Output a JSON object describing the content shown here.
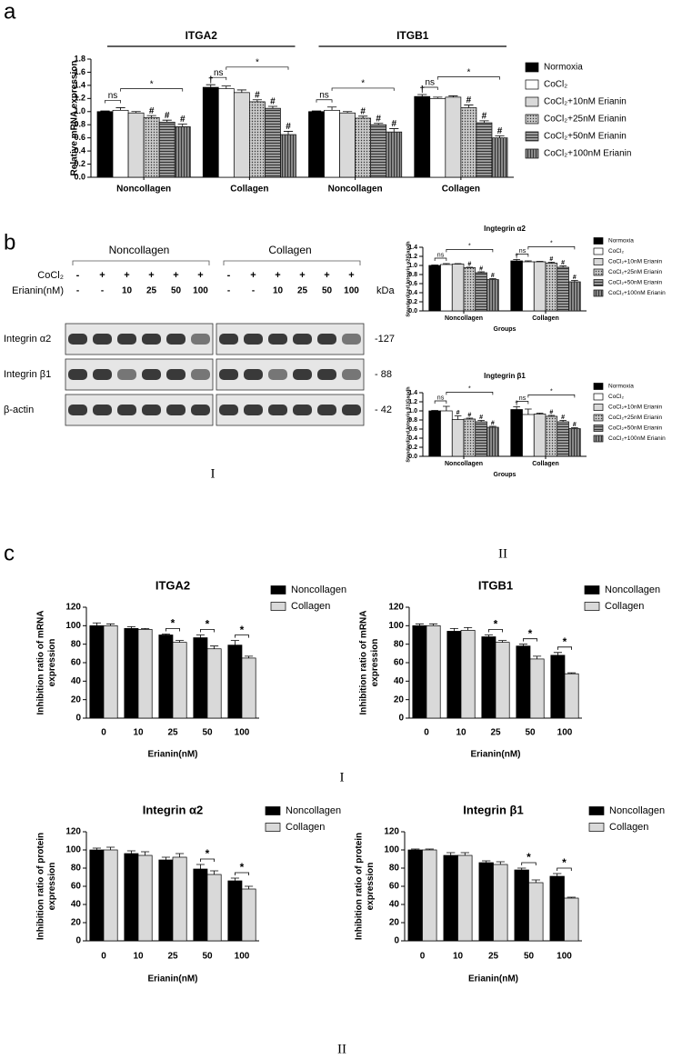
{
  "panel_labels": [
    "a",
    "b",
    "c"
  ],
  "captions": [
    "I",
    "II",
    "I",
    "II"
  ],
  "blot": {
    "groups": [
      "Noncollagen",
      "Collagen"
    ],
    "cocl2_label": "CoCl₂",
    "erianin_label": "Erianin(nM)",
    "cocl2": [
      "-",
      "+",
      "+",
      "+",
      "+",
      "+"
    ],
    "erianin": [
      "-",
      "-",
      "10",
      "25",
      "50",
      "100"
    ],
    "bands": [
      "Integrin α2",
      "Integrin β1",
      "β-actin"
    ],
    "kda_label": "kDa",
    "kda": [
      "-127",
      "- 88",
      "- 42"
    ]
  },
  "chart_data": [
    {
      "type": "bar",
      "headers": [
        "ITGA2",
        "ITGB1"
      ],
      "ylabel": "Relative mRNA expression",
      "categories": [
        "Noncollagen",
        "Collagen",
        "Noncollagen",
        "Collagen"
      ],
      "ylim": [
        0,
        1.8
      ],
      "yticks": [
        {
          "value": 0,
          "label": "0.0"
        },
        0.2,
        0.4,
        0.6,
        0.8,
        {
          "value": 1,
          "label": "1.0"
        },
        1.2,
        1.4,
        1.6,
        1.8
      ],
      "brackets": [
        {
          "text": "ns",
          "from": 0,
          "to": 1
        },
        {
          "text": "*",
          "from": 1,
          "to": 5
        }
      ],
      "series": [
        {
          "name": "Normoxia",
          "color": "#000000",
          "values": [
            1.0,
            1.37,
            1.0,
            1.23
          ],
          "errors": [
            0.01,
            0.04,
            0.01,
            0.03
          ],
          "marks": [
            null,
            "†",
            null,
            "†"
          ]
        },
        {
          "name": "CoCl₂",
          "color": "#ffffff",
          "values": [
            1.02,
            1.35,
            1.02,
            1.2
          ],
          "errors": [
            0.04,
            0.04,
            0.05,
            0.02
          ]
        },
        {
          "name": "CoCl₂+10nM Erianin",
          "color": "#d9d9d9",
          "values": [
            0.98,
            1.29,
            0.98,
            1.22
          ],
          "errors": [
            0.02,
            0.04,
            0.02,
            0.02
          ]
        },
        {
          "name": "CoCl₂+25nM Erianin",
          "color": "#c8c8c8",
          "pattern": "dots",
          "values": [
            0.91,
            1.15,
            0.9,
            1.06
          ],
          "errors": [
            0.03,
            0.03,
            0.03,
            0.04
          ],
          "marks": [
            "#",
            "#",
            "#",
            "#"
          ]
        },
        {
          "name": "CoCl₂+50nM Erianin",
          "color": "#9a9a9a",
          "pattern": "hlines",
          "values": [
            0.84,
            1.05,
            0.8,
            0.83
          ],
          "errors": [
            0.03,
            0.03,
            0.02,
            0.03
          ],
          "marks": [
            "#",
            "#",
            "#",
            "#"
          ]
        },
        {
          "name": "CoCl₂+100nM Erianin",
          "color": "#8a8a8a",
          "pattern": "vlines",
          "values": [
            0.77,
            0.65,
            0.69,
            0.6
          ],
          "errors": [
            0.04,
            0.05,
            0.05,
            0.03
          ],
          "marks": [
            "#",
            "#",
            "#",
            "#"
          ]
        }
      ]
    },
    {
      "type": "bar",
      "title": "Ingtegrin α2",
      "ylabel": "Standardized Integrin α2/Gapdh",
      "xlabel": "Groups",
      "categories": [
        "Noncollagen",
        "Collagen"
      ],
      "ylim": [
        0,
        1.4
      ],
      "yticks": [
        {
          "value": 0,
          "label": "0.0"
        },
        0.2,
        0.4,
        0.6,
        0.8,
        {
          "value": 1,
          "label": "1.0"
        },
        1.2,
        1.4
      ],
      "brackets": [
        {
          "text": "ns",
          "from": 0,
          "to": 1
        },
        {
          "text": "*",
          "from": 1,
          "to": 5
        }
      ],
      "series": [
        {
          "name": "Normoxia",
          "color": "#000000",
          "values": [
            1.0,
            1.1
          ],
          "errors": [
            0.01,
            0.03
          ],
          "marks": [
            null,
            "†"
          ]
        },
        {
          "name": "CoCl₂",
          "color": "#ffffff",
          "values": [
            1.02,
            1.08
          ],
          "errors": [
            0.02,
            0.02
          ]
        },
        {
          "name": "CoCl₂+10nM Erianin",
          "color": "#d9d9d9",
          "values": [
            1.03,
            1.08
          ],
          "errors": [
            0.01,
            0.01
          ]
        },
        {
          "name": "CoCl₂+25nM Erianin",
          "color": "#c8c8c8",
          "pattern": "dots",
          "values": [
            0.95,
            1.05
          ],
          "errors": [
            0.01,
            0.02
          ],
          "marks": [
            "#",
            "#"
          ]
        },
        {
          "name": "CoCl₂+50nM Erianin",
          "color": "#9a9a9a",
          "pattern": "hlines",
          "values": [
            0.84,
            0.96
          ],
          "errors": [
            0.02,
            0.03
          ],
          "marks": [
            "#",
            "#"
          ]
        },
        {
          "name": "CoCl₂+100nM Erianin",
          "color": "#8a8a8a",
          "pattern": "vlines",
          "values": [
            0.69,
            0.64
          ],
          "errors": [
            0.02,
            0.03
          ],
          "marks": [
            "#",
            "#"
          ]
        }
      ]
    },
    {
      "type": "bar",
      "title": "Ingtegrin β1",
      "ylabel": "Standardized Integrin β1/Gapdh",
      "xlabel": "Groups",
      "categories": [
        "Noncollagen",
        "Collagen"
      ],
      "ylim": [
        0,
        1.4
      ],
      "yticks": [
        {
          "value": 0,
          "label": "0.0"
        },
        0.2,
        0.4,
        0.6,
        0.8,
        {
          "value": 1,
          "label": "1.0"
        },
        1.2,
        1.4
      ],
      "brackets": [
        {
          "text": "ns",
          "from": 0,
          "to": 1
        },
        {
          "text": "*",
          "from": 1,
          "to": 5
        }
      ],
      "series": [
        {
          "name": "Normoxia",
          "color": "#000000",
          "values": [
            1.0,
            1.03
          ],
          "errors": [
            0.01,
            0.06
          ],
          "marks": [
            null,
            "†"
          ]
        },
        {
          "name": "CoCl₂",
          "color": "#ffffff",
          "values": [
            1.0,
            0.92
          ],
          "errors": [
            0.1,
            0.12
          ]
        },
        {
          "name": "CoCl₂+10nM Erianin",
          "color": "#d9d9d9",
          "values": [
            0.81,
            0.93
          ],
          "errors": [
            0.08,
            0.02
          ],
          "marks": [
            "#",
            null
          ]
        },
        {
          "name": "CoCl₂+25nM Erianin",
          "color": "#c8c8c8",
          "pattern": "dots",
          "values": [
            0.82,
            0.88
          ],
          "errors": [
            0.02,
            0.02
          ],
          "marks": [
            "#",
            "#"
          ]
        },
        {
          "name": "CoCl₂+50nM Erianin",
          "color": "#9a9a9a",
          "pattern": "hlines",
          "values": [
            0.76,
            0.76
          ],
          "errors": [
            0.03,
            0.03
          ],
          "marks": [
            "#",
            "#"
          ]
        },
        {
          "name": "CoCl₂+100nM Erianin",
          "color": "#8a8a8a",
          "pattern": "vlines",
          "values": [
            0.64,
            0.61
          ],
          "errors": [
            0.02,
            0.02
          ],
          "marks": [
            "#",
            "#"
          ]
        }
      ]
    },
    {
      "type": "bar",
      "title": "ITGA2",
      "ylabel": [
        "Inhibition ratio of mRNA",
        "expression"
      ],
      "xlabel": "Erianin(nM)",
      "categories": [
        "0",
        "10",
        "25",
        "50",
        "100"
      ],
      "ylim": [
        0,
        120
      ],
      "yticks": [
        0,
        20,
        40,
        60,
        80,
        100,
        120
      ],
      "category_marks": [
        null,
        null,
        "*",
        "*",
        "*"
      ],
      "series": [
        {
          "name": "Noncollagen",
          "color": "#000000",
          "values": [
            100,
            97,
            90,
            87,
            79
          ],
          "errors": [
            3,
            2,
            1,
            3,
            5
          ]
        },
        {
          "name": "Collagen",
          "color": "#d9d9d9",
          "values": [
            100,
            96,
            82,
            75,
            65
          ],
          "errors": [
            2,
            1,
            2,
            3,
            2
          ]
        }
      ]
    },
    {
      "type": "bar",
      "title": "ITGB1",
      "ylabel": [
        "Inhibition ratio of mRNA",
        "expression"
      ],
      "xlabel": "Erianin(nM)",
      "categories": [
        "0",
        "10",
        "25",
        "50",
        "100"
      ],
      "ylim": [
        0,
        120
      ],
      "yticks": [
        0,
        20,
        40,
        60,
        80,
        100,
        120
      ],
      "category_marks": [
        null,
        null,
        "*",
        "*",
        "*"
      ],
      "series": [
        {
          "name": "Noncollagen",
          "color": "#000000",
          "values": [
            100,
            94,
            88,
            78,
            68
          ],
          "errors": [
            2,
            3,
            2,
            2,
            3
          ]
        },
        {
          "name": "Collagen",
          "color": "#d9d9d9",
          "values": [
            100,
            95,
            82,
            64,
            48
          ],
          "errors": [
            2,
            3,
            2,
            3,
            1
          ]
        }
      ]
    },
    {
      "type": "bar",
      "title": "Integrin α2",
      "ylabel": [
        "Inhibition ratio of protein",
        "expression"
      ],
      "xlabel": "Erianin(nM)",
      "categories": [
        "0",
        "10",
        "25",
        "50",
        "100"
      ],
      "ylim": [
        0,
        120
      ],
      "yticks": [
        0,
        20,
        40,
        60,
        80,
        100,
        120
      ],
      "category_marks": [
        null,
        null,
        null,
        "*",
        "*"
      ],
      "series": [
        {
          "name": "Noncollagen",
          "color": "#000000",
          "values": [
            100,
            96,
            89,
            79,
            66
          ],
          "errors": [
            2,
            3,
            3,
            5,
            3
          ]
        },
        {
          "name": "Collagen",
          "color": "#d9d9d9",
          "values": [
            100,
            94,
            92,
            73,
            57
          ],
          "errors": [
            3,
            4,
            4,
            4,
            3
          ]
        }
      ]
    },
    {
      "type": "bar",
      "title": "Integrin β1",
      "ylabel": [
        "Inhibition ratio of protein",
        "expression"
      ],
      "xlabel": "Erianin(nM)",
      "categories": [
        "0",
        "10",
        "25",
        "50",
        "100"
      ],
      "ylim": [
        0,
        120
      ],
      "yticks": [
        0,
        20,
        40,
        60,
        80,
        100,
        120
      ],
      "category_marks": [
        null,
        null,
        null,
        "*",
        "*"
      ],
      "series": [
        {
          "name": "Noncollagen",
          "color": "#000000",
          "values": [
            100,
            94,
            86,
            78,
            71
          ],
          "errors": [
            1,
            3,
            2,
            2,
            3
          ]
        },
        {
          "name": "Collagen",
          "color": "#d9d9d9",
          "values": [
            100,
            94,
            84,
            64,
            47
          ],
          "errors": [
            1,
            3,
            3,
            3,
            1
          ]
        }
      ]
    }
  ]
}
